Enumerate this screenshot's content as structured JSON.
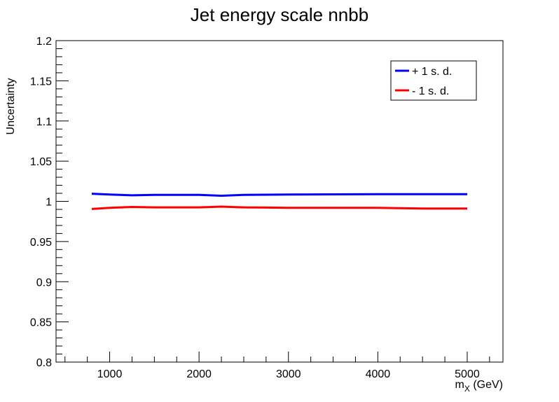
{
  "chart_data": {
    "type": "line",
    "title": "Jet energy scale nnbb",
    "xlabel_main": "m",
    "xlabel_sub": "X",
    "xlabel_unit": " (GeV)",
    "ylabel": "Uncertainty",
    "xlim": [
      400,
      5400
    ],
    "ylim": [
      0.8,
      1.2
    ],
    "x_ticks": [
      1000,
      2000,
      3000,
      4000,
      5000
    ],
    "x_tick_labels": [
      "1000",
      "2000",
      "3000",
      "4000",
      "5000"
    ],
    "y_ticks": [
      0.8,
      0.85,
      0.9,
      0.95,
      1.0,
      1.05,
      1.1,
      1.15,
      1.2
    ],
    "y_tick_labels": [
      "0.8",
      "0.85",
      "0.9",
      "0.95",
      "1",
      "1.05",
      "1.1",
      "1.15",
      "1.2"
    ],
    "grid": false,
    "legend_position": "top-right",
    "series": [
      {
        "name": "+ 1 s. d.",
        "color": "#0000ff",
        "points": [
          [
            800,
            1.0095
          ],
          [
            1000,
            1.0085
          ],
          [
            1250,
            1.0075
          ],
          [
            1500,
            1.008
          ],
          [
            2000,
            1.008
          ],
          [
            2250,
            1.007
          ],
          [
            2500,
            1.008
          ],
          [
            3000,
            1.0085
          ],
          [
            4000,
            1.009
          ],
          [
            4500,
            1.009
          ],
          [
            5000,
            1.009
          ]
        ]
      },
      {
        "name": "- 1 s. d.",
        "color": "#ff0000",
        "points": [
          [
            800,
            0.9905
          ],
          [
            1000,
            0.992
          ],
          [
            1250,
            0.993
          ],
          [
            1500,
            0.9925
          ],
          [
            2000,
            0.9925
          ],
          [
            2250,
            0.9935
          ],
          [
            2500,
            0.9925
          ],
          [
            3000,
            0.992
          ],
          [
            4000,
            0.992
          ],
          [
            4500,
            0.991
          ],
          [
            5000,
            0.991
          ]
        ]
      }
    ]
  }
}
